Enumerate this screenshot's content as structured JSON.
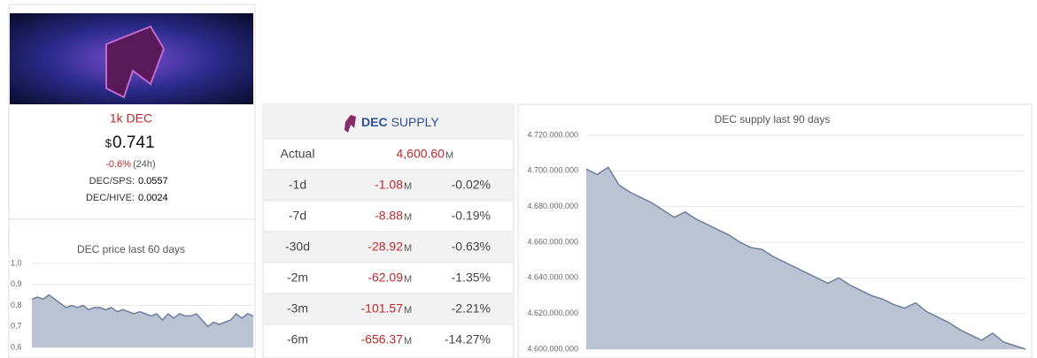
{
  "card": {
    "title": "1k DEC",
    "currency": "$",
    "price": "0.741",
    "change": "-0.6%",
    "period": "(24h)",
    "pairs": [
      {
        "label": "DEC/SPS:",
        "value": "0.0557"
      },
      {
        "label": "DEC/HIVE:",
        "value": "0.0024"
      }
    ]
  },
  "table": {
    "header": {
      "token": "DEC",
      "word": "SUPPLY"
    },
    "unit": "M",
    "rows": [
      {
        "label": "Actual",
        "value": "4,600.60"
      },
      {
        "label": "-1d",
        "value": "-1.08",
        "pct": "-0.02%"
      },
      {
        "label": "-7d",
        "value": "-8.88",
        "pct": "-0.19%"
      },
      {
        "label": "-30d",
        "value": "-28.92",
        "pct": "-0.63%"
      },
      {
        "label": "-2m",
        "value": "-62.09",
        "pct": "-1.35%"
      },
      {
        "label": "-3m",
        "value": "-101.57",
        "pct": "-2.21%"
      },
      {
        "label": "-6m",
        "value": "-656.37",
        "pct": "-14.27%"
      }
    ]
  },
  "chart_data": [
    {
      "type": "area",
      "title": "DEC price last 60 days",
      "color": "#b9c3d3",
      "values": [
        0.83,
        0.84,
        0.83,
        0.85,
        0.83,
        0.81,
        0.79,
        0.8,
        0.79,
        0.8,
        0.78,
        0.79,
        0.79,
        0.78,
        0.79,
        0.77,
        0.78,
        0.77,
        0.76,
        0.77,
        0.76,
        0.75,
        0.76,
        0.73,
        0.76,
        0.74,
        0.76,
        0.75,
        0.75,
        0.76,
        0.73,
        0.7,
        0.72,
        0.71,
        0.72,
        0.73,
        0.76,
        0.74,
        0.76,
        0.75
      ],
      "ylim": [
        0.6,
        1.0
      ],
      "yticks": [
        {
          "value": 0.6,
          "label": "0,6"
        },
        {
          "value": 0.7,
          "label": "0,7"
        },
        {
          "value": 0.8,
          "label": "0,8"
        },
        {
          "value": 0.9,
          "label": "0,9"
        },
        {
          "value": 1.0,
          "label": "1,0"
        }
      ]
    },
    {
      "type": "area",
      "title": "DEC supply last 90 days",
      "color": "#b9c3d3",
      "values": [
        4701000000,
        4698000000,
        4702000000,
        4692000000,
        4688000000,
        4685000000,
        4682000000,
        4678000000,
        4674000000,
        4677000000,
        4673000000,
        4670000000,
        4667000000,
        4664000000,
        4660000000,
        4657000000,
        4656000000,
        4652000000,
        4649000000,
        4646000000,
        4643000000,
        4640000000,
        4637000000,
        4640000000,
        4636000000,
        4633000000,
        4630000000,
        4628000000,
        4625000000,
        4623000000,
        4626000000,
        4621000000,
        4618000000,
        4615000000,
        4611000000,
        4608000000,
        4605000000,
        4609000000,
        4604000000,
        4602000000,
        4600000000
      ],
      "ylim": [
        4600000000,
        4720000000
      ],
      "yticks": [
        {
          "value": 4600000000,
          "label": "4.600.000.000"
        },
        {
          "value": 4620000000,
          "label": "4.620.000.000"
        },
        {
          "value": 4640000000,
          "label": "4.640.000.000"
        },
        {
          "value": 4660000000,
          "label": "4.660.000.000"
        },
        {
          "value": 4680000000,
          "label": "4.680.000.000"
        },
        {
          "value": 4700000000,
          "label": "4.700.000.000"
        },
        {
          "value": 4720000000,
          "label": "4.720.000.000"
        }
      ]
    }
  ]
}
